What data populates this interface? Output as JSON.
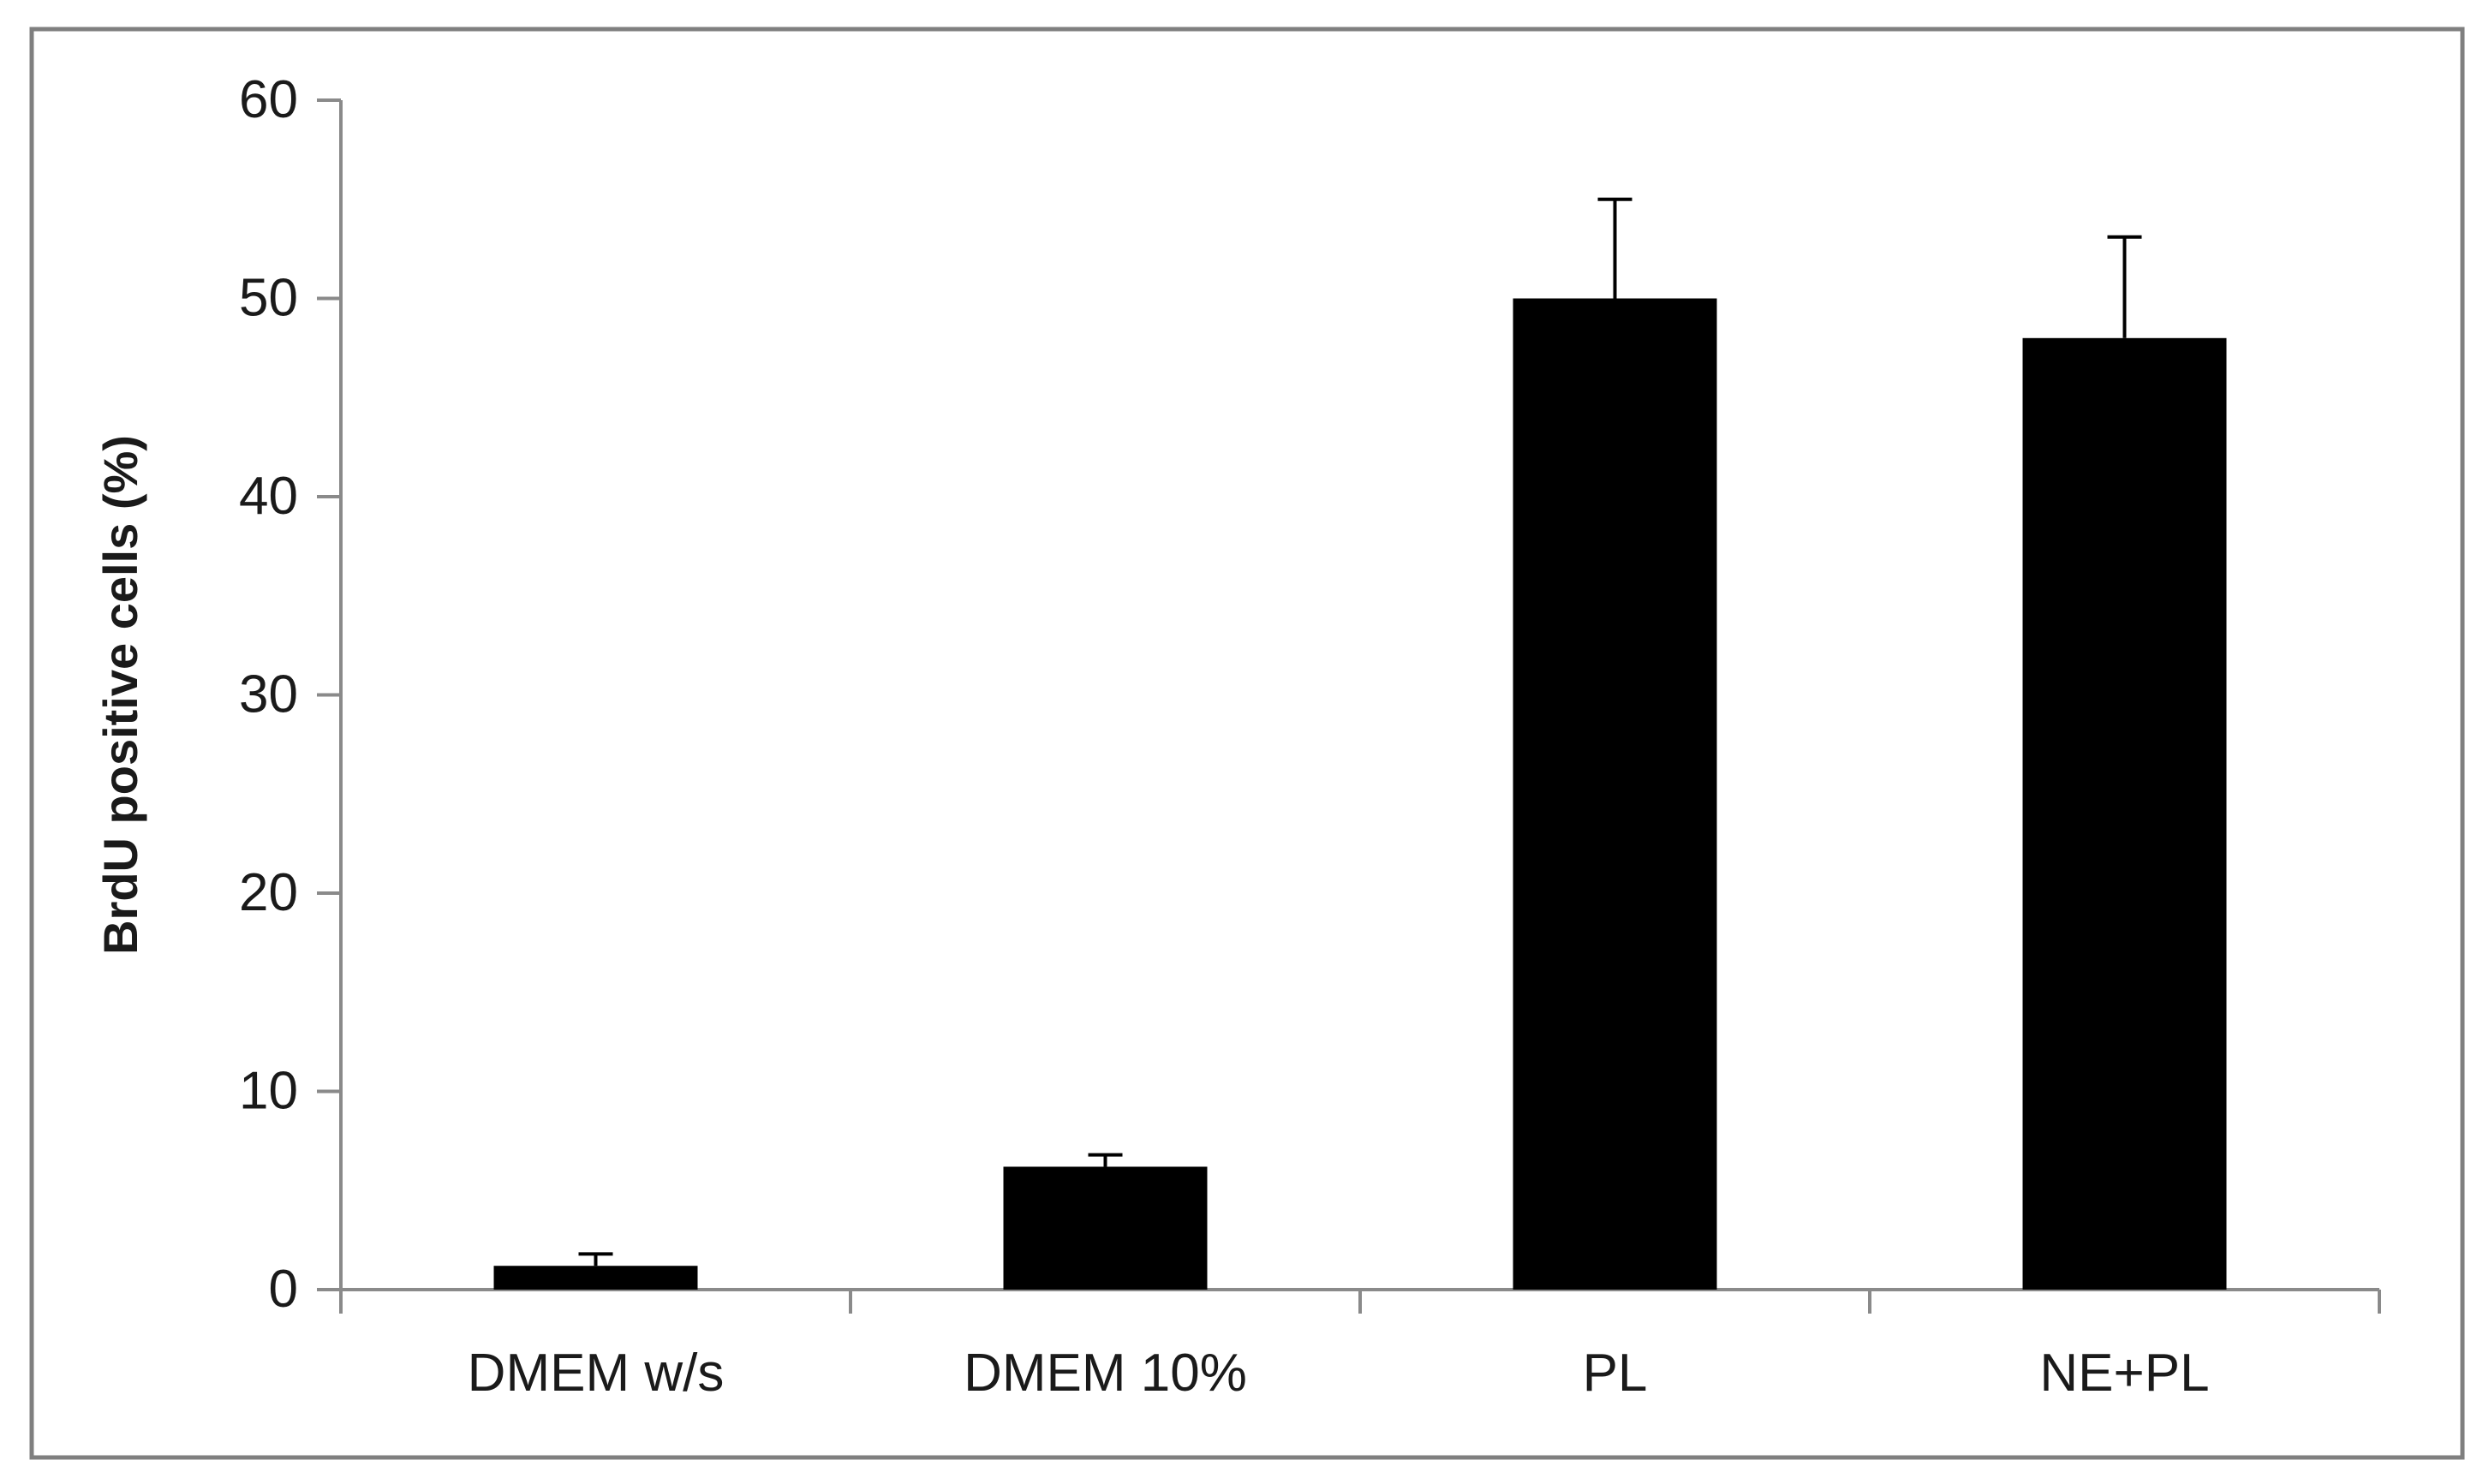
{
  "chart_data": {
    "type": "bar",
    "title": "",
    "xlabel": "",
    "ylabel": "BrdU positive cells (%)",
    "categories": [
      "DMEM w/s",
      "DMEM 10%",
      "PL",
      "NE+PL"
    ],
    "series": [
      {
        "values": [
          1.2,
          6.2,
          50,
          48
        ],
        "error_plus": [
          0.6,
          0.6,
          5,
          5.1
        ]
      }
    ],
    "ylim": [
      0,
      60
    ],
    "yticks": [
      "0",
      "10",
      "20",
      "30",
      "40",
      "50",
      "60"
    ],
    "grid": false,
    "legend": "none",
    "colors": {
      "bar": "#000000",
      "axis": "#8a8a8a",
      "frame": "#7f7f7f",
      "text": "#1a1a1a"
    }
  }
}
